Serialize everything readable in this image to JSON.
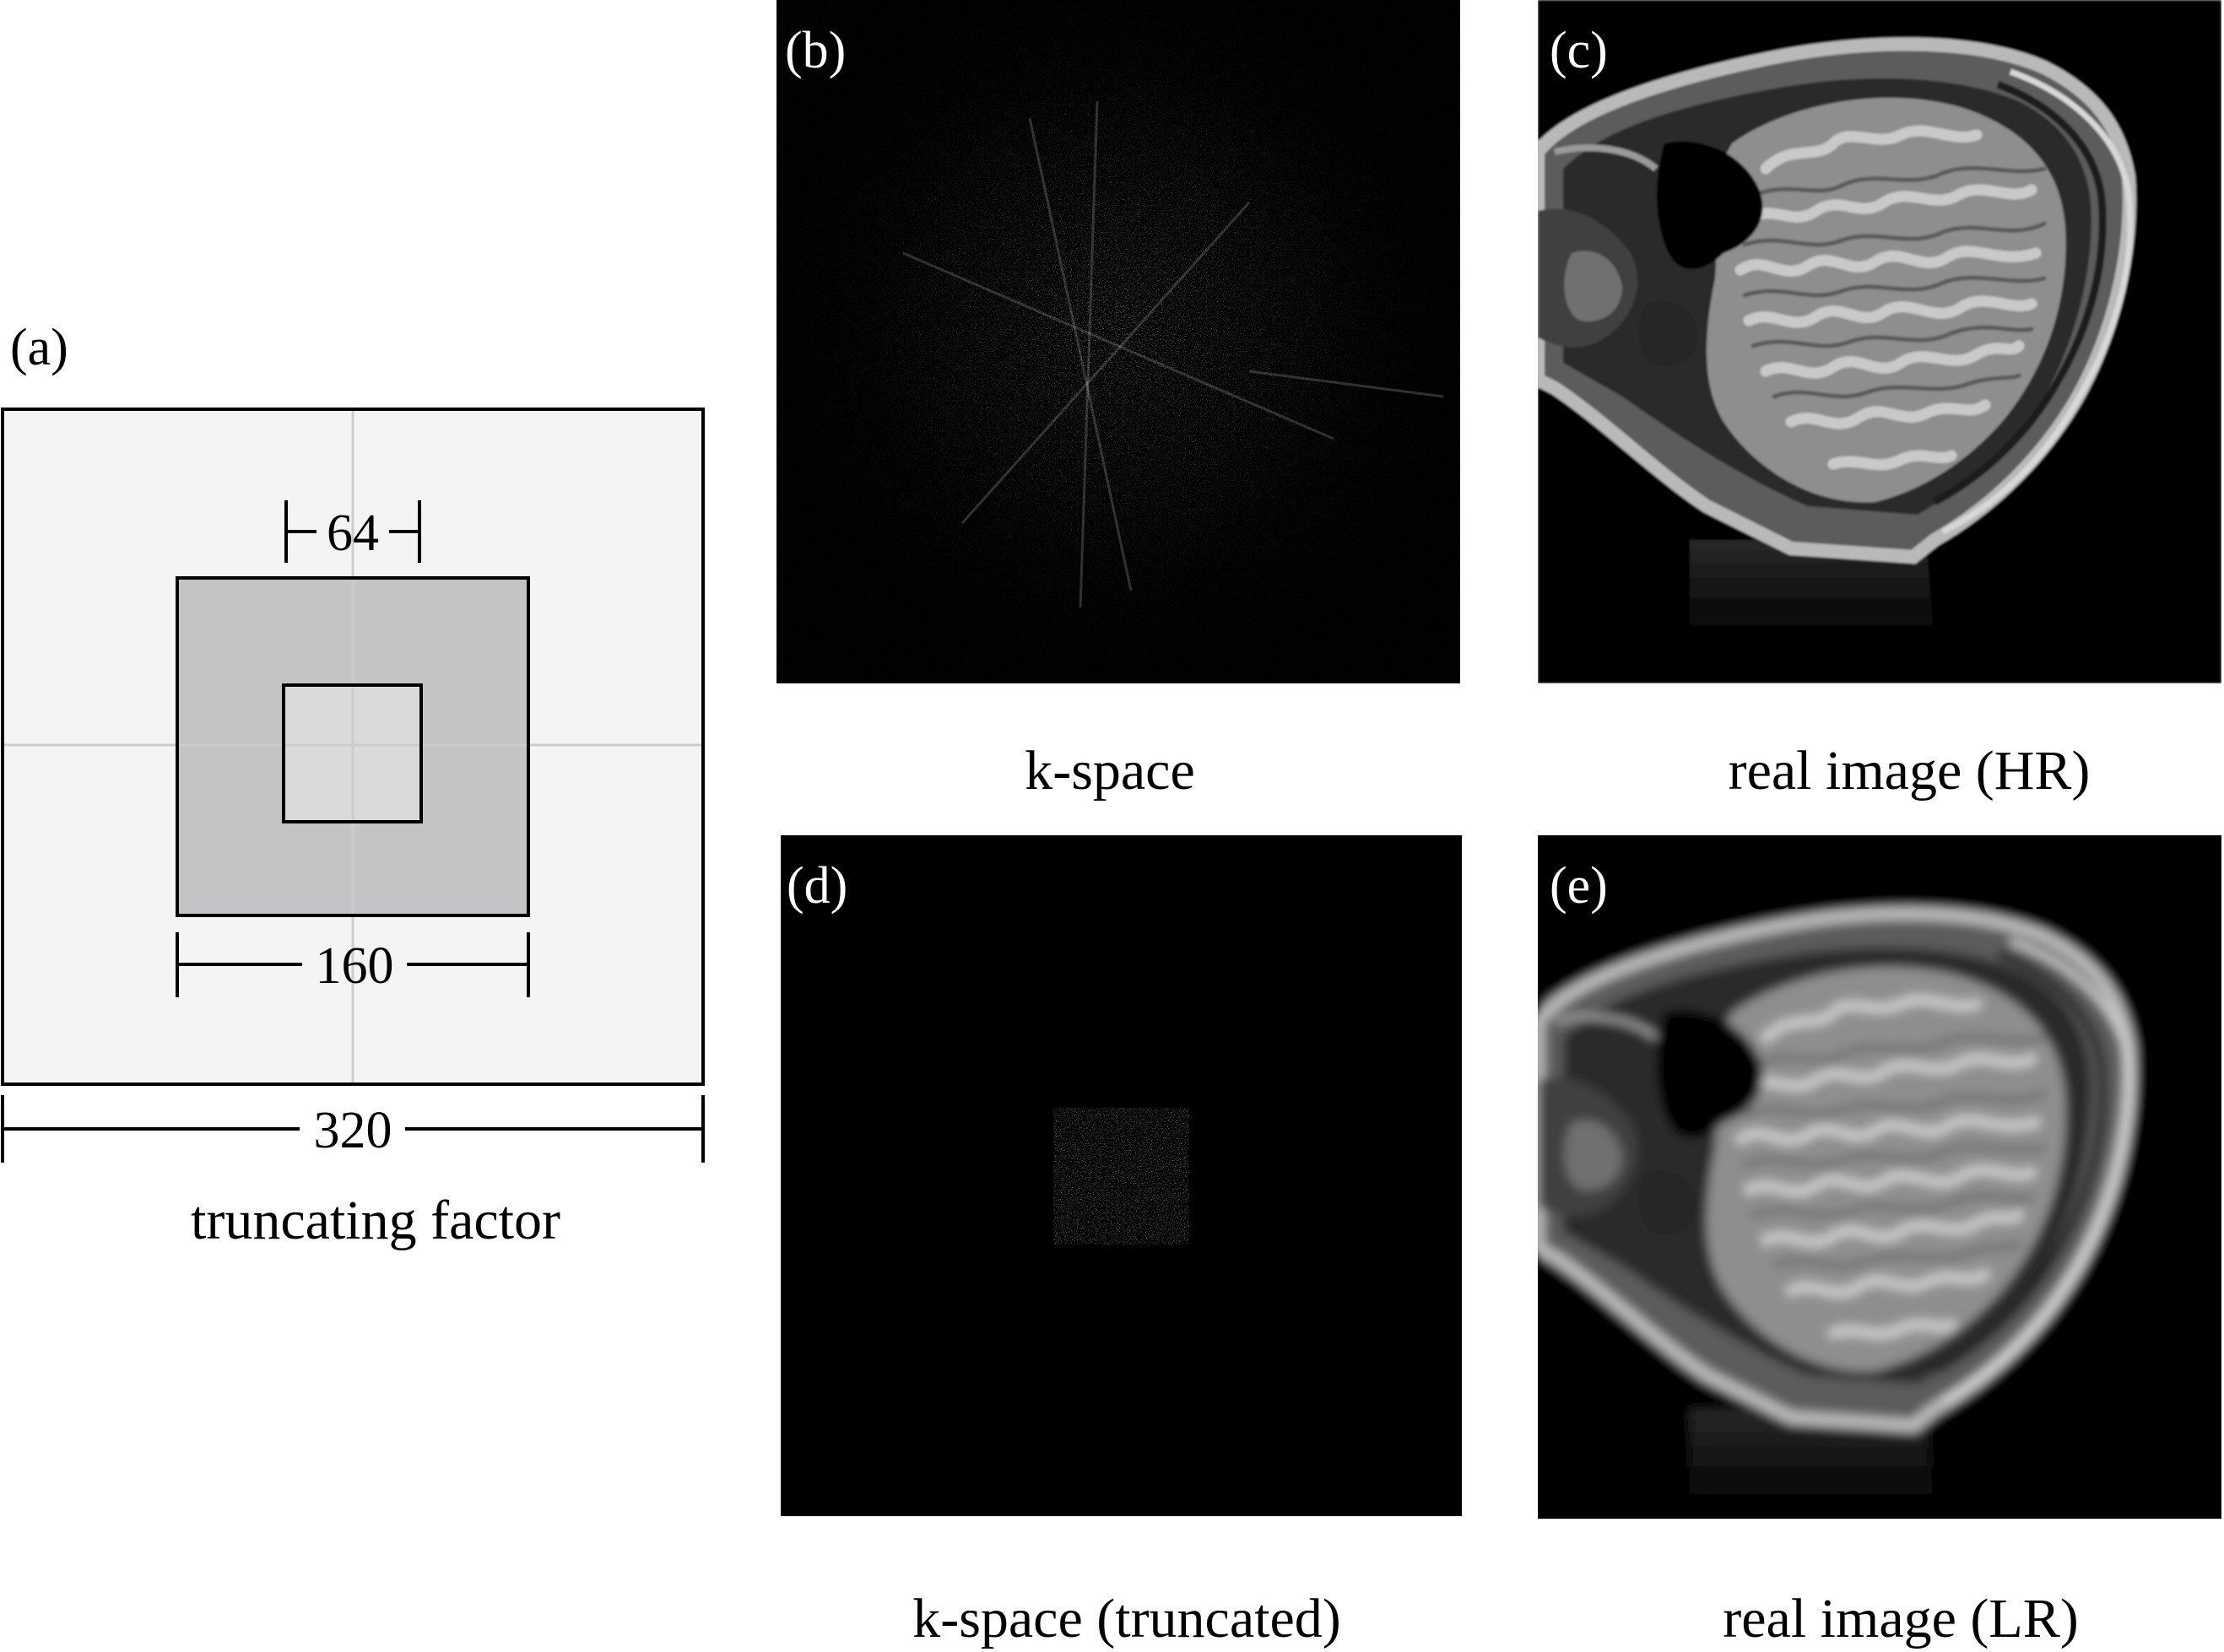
{
  "panels": {
    "a": {
      "label": "(a)",
      "inner_size_label": "64",
      "middle_size_label": "160",
      "outer_size_label": "320",
      "caption": "truncating factor"
    },
    "b": {
      "label": "(b)",
      "caption": "k-space"
    },
    "c": {
      "label": "(c)",
      "caption": "real image (HR)"
    },
    "d": {
      "label": "(d)",
      "caption": "k-space (truncated)"
    },
    "e": {
      "label": "(e)",
      "caption": "real image (LR)"
    }
  },
  "colors": {
    "outer_square_fill": "#f4f4f4",
    "middle_square_fill": "#c2c4c6",
    "inner_square_fill": "#dcdad9",
    "crosshair": "#cccccc",
    "image_background": "#000000",
    "label_on_image": "#ffffff",
    "text": "#000000"
  }
}
